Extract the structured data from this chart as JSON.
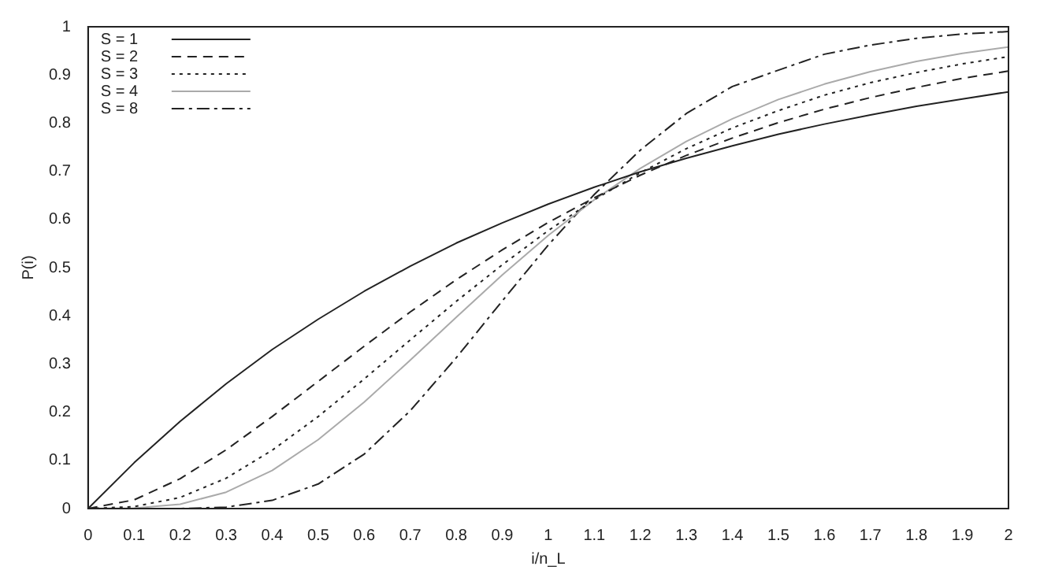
{
  "chart_data": {
    "type": "line",
    "xlabel": "i/n_L",
    "ylabel": "P(i)",
    "x": [
      0,
      0.1,
      0.2,
      0.3,
      0.4,
      0.5,
      0.6,
      0.7,
      0.8,
      0.9,
      1,
      1.1,
      1.2,
      1.3,
      1.4,
      1.5,
      1.6,
      1.7,
      1.8,
      1.9,
      2
    ],
    "series": [
      {
        "name": "S = 1",
        "color": "#222222",
        "line_style": "solid",
        "values": [
          0,
          0.095,
          0.181,
          0.259,
          0.33,
          0.393,
          0.451,
          0.503,
          0.551,
          0.593,
          0.632,
          0.667,
          0.699,
          0.727,
          0.753,
          0.777,
          0.798,
          0.817,
          0.835,
          0.85,
          0.865
        ]
      },
      {
        "name": "S = 2",
        "color": "#222222",
        "line_style": "dashed",
        "values": [
          0,
          0.018,
          0.062,
          0.122,
          0.191,
          0.264,
          0.337,
          0.408,
          0.475,
          0.537,
          0.594,
          0.645,
          0.692,
          0.733,
          0.769,
          0.801,
          0.829,
          0.853,
          0.874,
          0.893,
          0.908
        ]
      },
      {
        "name": "S = 3",
        "color": "#222222",
        "line_style": "dotted",
        "values": [
          0,
          0.004,
          0.023,
          0.063,
          0.121,
          0.191,
          0.269,
          0.35,
          0.43,
          0.506,
          0.577,
          0.641,
          0.697,
          0.747,
          0.79,
          0.826,
          0.858,
          0.884,
          0.905,
          0.923,
          0.938
        ]
      },
      {
        "name": "S = 4",
        "color": "#aaaaaa",
        "line_style": "solid",
        "values": [
          0,
          0.001,
          0.009,
          0.034,
          0.079,
          0.143,
          0.221,
          0.308,
          0.397,
          0.485,
          0.567,
          0.641,
          0.706,
          0.762,
          0.809,
          0.849,
          0.881,
          0.907,
          0.928,
          0.945,
          0.958
        ]
      },
      {
        "name": "S = 8",
        "color": "#222222",
        "line_style": "dashdot",
        "values": [
          0,
          0,
          0,
          0.003,
          0.017,
          0.051,
          0.113,
          0.203,
          0.313,
          0.431,
          0.547,
          0.652,
          0.744,
          0.82,
          0.876,
          0.91,
          0.943,
          0.962,
          0.976,
          0.985,
          0.99
        ]
      }
    ],
    "xlim": [
      0,
      2
    ],
    "xticks": [
      0,
      0.1,
      0.2,
      0.3,
      0.4,
      0.5,
      0.6,
      0.7,
      0.8,
      0.9,
      1,
      1.1,
      1.2,
      1.3,
      1.4,
      1.5,
      1.6,
      1.7,
      1.8,
      1.9,
      2
    ],
    "ylim": [
      0,
      1
    ],
    "yticks": [
      0,
      0.1,
      0.2,
      0.3,
      0.4,
      0.5,
      0.6,
      0.7,
      0.8,
      0.9,
      1
    ],
    "grid": false,
    "legend": "top left",
    "marker": "none"
  }
}
